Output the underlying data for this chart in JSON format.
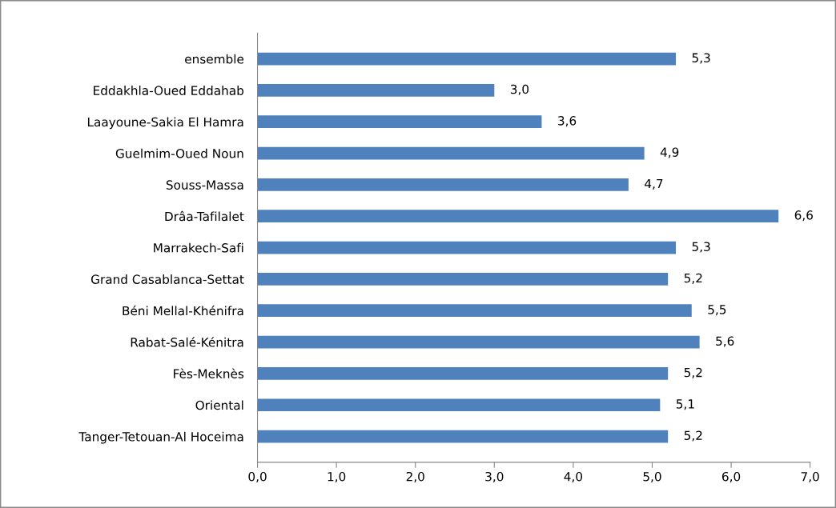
{
  "chart_data": {
    "type": "bar",
    "orientation": "horizontal",
    "color": "#4f81bd",
    "categories": [
      "ensemble",
      "Eddakhla-Oued Eddahab",
      "Laayoune-Sakia El Hamra",
      "Guelmim-Oued Noun",
      "Souss-Massa",
      "Drâa-Tafilalet",
      "Marrakech-Safi",
      "Grand Casablanca-Settat",
      "Béni Mellal-Khénifra",
      "Rabat-Salé-Kénitra",
      "Fès-Meknès",
      "Oriental",
      "Tanger-Tetouan-Al Hoceima"
    ],
    "values": [
      5.3,
      3.0,
      3.6,
      4.9,
      4.7,
      6.6,
      5.3,
      5.2,
      5.5,
      5.6,
      5.2,
      5.1,
      5.2
    ],
    "value_labels": [
      "5,3",
      "3,0",
      "3,6",
      "4,9",
      "4,7",
      "6,6",
      "5,3",
      "5,2",
      "5,5",
      "5,6",
      "5,2",
      "5,1",
      "5,2"
    ],
    "xlim": [
      0,
      7
    ],
    "xticks": [
      {
        "value": 0,
        "label": "0,0"
      },
      {
        "value": 1,
        "label": "1,0"
      },
      {
        "value": 2,
        "label": "2,0"
      },
      {
        "value": 3,
        "label": "3,0"
      },
      {
        "value": 4,
        "label": "4,0"
      },
      {
        "value": 5,
        "label": "5,0"
      },
      {
        "value": 6,
        "label": "6,0"
      },
      {
        "value": 7,
        "label": "7,0"
      }
    ],
    "grid": false,
    "legend": false
  }
}
